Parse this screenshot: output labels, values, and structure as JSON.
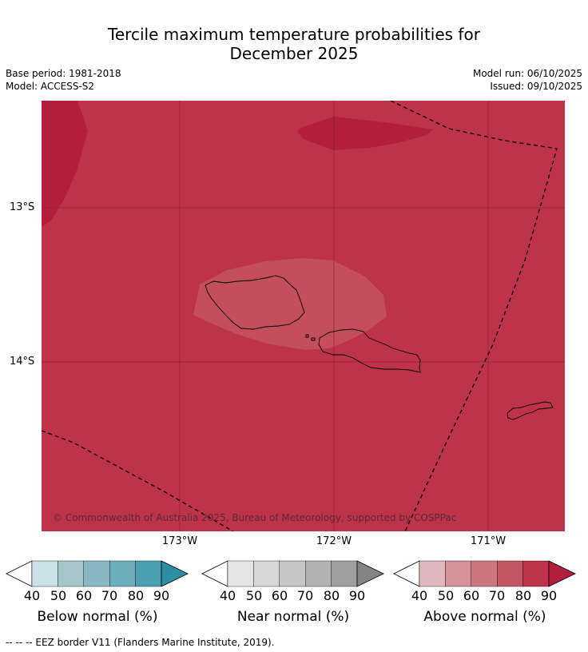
{
  "title": {
    "line1": "Tercile maximum temperature probabilities for",
    "line2": "December 2025"
  },
  "meta": {
    "base_period": "Base period: 1981-2018",
    "model": "Model: ACCESS-S2",
    "model_run": "Model run: 06/10/2025",
    "issued": "Issued: 09/10/2025"
  },
  "map": {
    "lat_labels": [
      "13°S",
      "14°S"
    ],
    "lon_labels": [
      "173°W",
      "172°W",
      "171°W"
    ],
    "copyright": "© Commonwealth of Australia 2025, Bureau of Meteorology, supported by COSPPac",
    "colors": {
      "background": "#bd334a",
      "pocket_high": "#b21e3b",
      "pocket_mid": "#c34f5c",
      "grid": "#8c1f30",
      "coast": "#000000"
    }
  },
  "colorbars": {
    "ticks": [
      "40",
      "50",
      "60",
      "70",
      "80",
      "90"
    ],
    "below": {
      "label": "Below normal (%)",
      "colors": [
        "#ffffff",
        "#c9e1e7",
        "#a6c6cc",
        "#89b7c3",
        "#6daebd",
        "#4b9fb1",
        "#2c8fa1"
      ]
    },
    "near": {
      "label": "Near normal (%)",
      "colors": [
        "#ffffff",
        "#e5e5e5",
        "#d8d8d8",
        "#c6c6c6",
        "#b3b3b3",
        "#9f9f9f",
        "#848484"
      ]
    },
    "above": {
      "label": "Above normal (%)",
      "colors": [
        "#ffffff",
        "#e1b8bd",
        "#d49299",
        "#cc7680",
        "#c45562",
        "#bd334a",
        "#b21e3b"
      ]
    }
  },
  "footer": "--  --  -- EEZ border V11 (Flanders Marine Institute, 2019)."
}
